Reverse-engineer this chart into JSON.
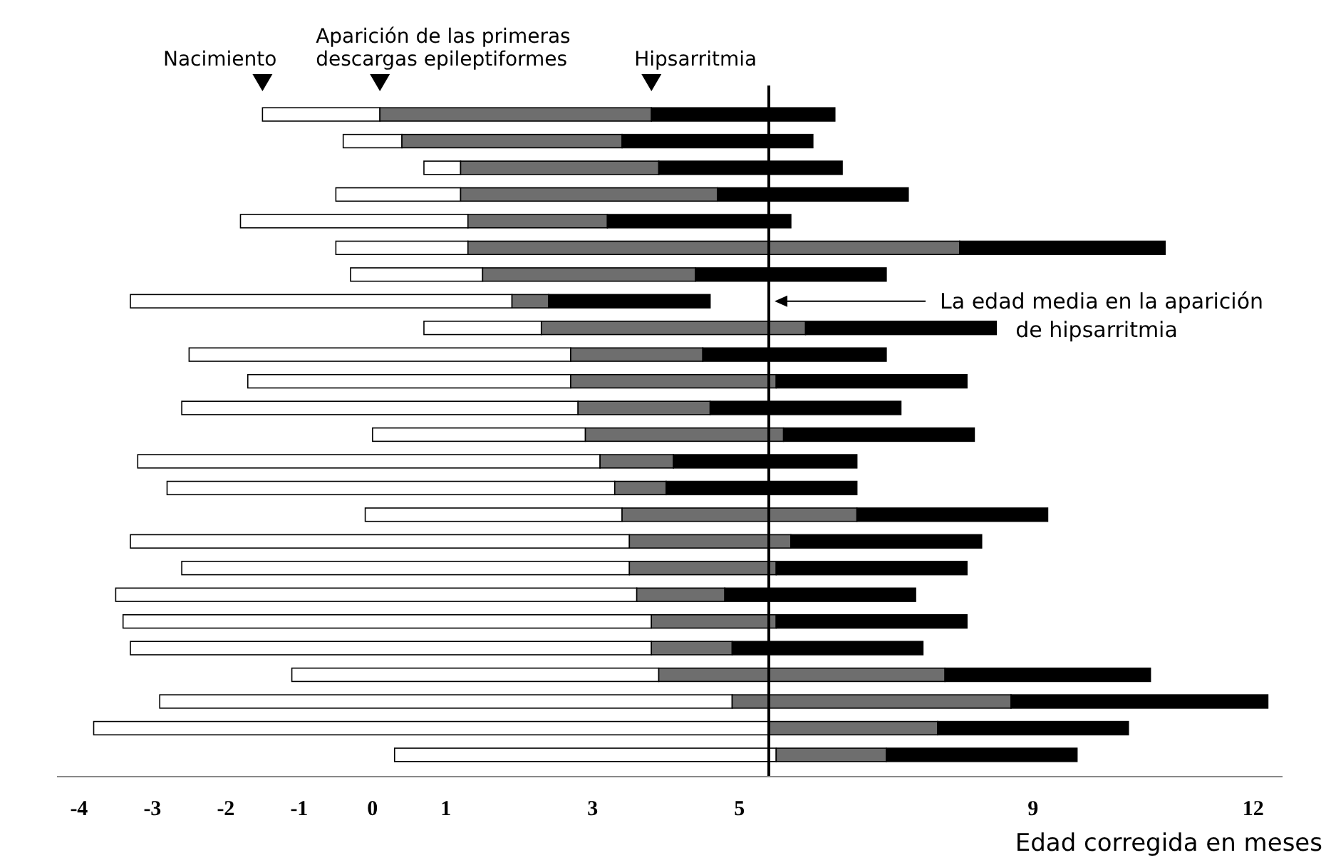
{
  "chart_data": {
    "type": "bar",
    "orientation": "horizontal",
    "categories": [
      null,
      null,
      null,
      null,
      null,
      null,
      null,
      null,
      null,
      null,
      null,
      null,
      null,
      null,
      null,
      null,
      null,
      null,
      null,
      null,
      null,
      null,
      null,
      null,
      null
    ],
    "series": [
      {
        "color": "#ffffff",
        "base": [
          -1.5,
          -0.4,
          0.7,
          -0.5,
          -1.8,
          -0.5,
          -0.3,
          -3.3,
          0.7,
          -2.5,
          -1.7,
          -2.6,
          0.0,
          -3.2,
          -2.8,
          -0.1,
          -3.3,
          -2.6,
          -3.5,
          -3.4,
          -3.3,
          -1.1,
          -2.9,
          -3.8,
          0.3
        ],
        "values": [
          1.6,
          0.8,
          0.5,
          1.7,
          3.1,
          1.8,
          1.8,
          5.2,
          1.6,
          5.2,
          4.4,
          5.4,
          2.9,
          6.3,
          6.1,
          3.5,
          6.8,
          6.1,
          7.1,
          7.2,
          7.1,
          5.0,
          7.8,
          9.2,
          5.2
        ]
      },
      {
        "color": "#6e6e6e",
        "base": [
          0.1,
          0.4,
          1.2,
          1.2,
          1.3,
          1.3,
          1.5,
          1.9,
          2.3,
          2.7,
          2.7,
          2.8,
          2.9,
          3.1,
          3.3,
          3.4,
          3.5,
          3.5,
          3.6,
          3.8,
          3.8,
          3.9,
          4.9,
          5.4,
          5.5
        ],
        "values": [
          3.7,
          3.0,
          2.7,
          3.5,
          1.9,
          6.7,
          2.9,
          0.5,
          3.6,
          1.8,
          2.8,
          1.8,
          2.7,
          1.0,
          0.7,
          3.2,
          2.2,
          2.0,
          1.2,
          1.7,
          1.1,
          3.9,
          3.8,
          2.3,
          1.5
        ]
      },
      {
        "color": "#000000",
        "base": [
          3.8,
          3.4,
          3.9,
          4.7,
          3.2,
          8.0,
          4.4,
          2.4,
          5.9,
          4.5,
          5.5,
          4.6,
          5.6,
          4.1,
          4.0,
          6.6,
          5.7,
          5.5,
          4.8,
          5.5,
          4.9,
          7.8,
          8.7,
          7.7,
          7.0
        ],
        "values": [
          2.5,
          2.6,
          2.5,
          2.6,
          2.5,
          2.8,
          2.6,
          2.2,
          2.6,
          2.5,
          2.6,
          2.6,
          2.6,
          2.5,
          2.6,
          2.6,
          2.6,
          2.6,
          2.6,
          2.6,
          2.6,
          2.8,
          3.5,
          2.6,
          2.6
        ]
      }
    ],
    "xlim": [
      -4.3,
      12.4
    ],
    "xticks": [
      -4,
      -3,
      -2,
      -1,
      0,
      1,
      3,
      5,
      9,
      12
    ],
    "xlabel": "Edad corregida en meses",
    "annotations": [
      "Nacimiento",
      "Aparición de las primeras descargas epileptiformes",
      "Hipsarritmia"
    ],
    "ref_lines": [
      {
        "axis": "x",
        "value": 5.4,
        "label": "La edad media en la aparición de hipsarritmia",
        "color": "#000000"
      }
    ],
    "grid": false
  }
}
